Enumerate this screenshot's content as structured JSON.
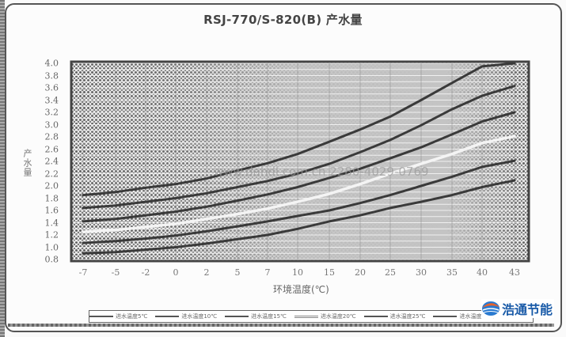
{
  "title": "RSJ-770/S-820(B) 产水量",
  "watermark": "www.dahdl.com.cn 2280-4029-0769",
  "brand": {
    "text": "浩通节能",
    "colors": {
      "orange": "#e8622a",
      "blue": "#2a7ad0"
    }
  },
  "colors": {
    "curve_dark": "#3a3a3a",
    "curve_white": "#f4f4f4",
    "plot_bg": "#c4c4c4",
    "grid": "#ffffff"
  },
  "chart_data": {
    "type": "line",
    "title": "RSJ-770/S-820(B) 产水量",
    "xlabel": "环境温度(℃)",
    "ylabel": "产水量",
    "x": [
      -7,
      -5,
      -2,
      0,
      2,
      5,
      7,
      10,
      15,
      20,
      25,
      30,
      35,
      40,
      43
    ],
    "x_tick_labels": [
      "-7",
      "-5",
      "-2",
      "0",
      "2",
      "5",
      "7",
      "10",
      "15",
      "20",
      "25",
      "30",
      "35",
      "40",
      "43"
    ],
    "y_tick_labels": [
      "4.0",
      "3.8",
      "3.6",
      "3.4",
      "3.2",
      "3.0",
      "2.8",
      "2.6",
      "2.4",
      "2.2",
      "2.0",
      "1.8",
      "1.6",
      "1.4",
      "1.2",
      "1.0",
      "0.8"
    ],
    "ylim": [
      0.8,
      4.0
    ],
    "grid": true,
    "legend_position": "bottom",
    "series": [
      {
        "name": "进水温度5℃",
        "style": "dark",
        "values": [
          1.85,
          1.9,
          1.97,
          2.03,
          2.12,
          2.25,
          2.37,
          2.52,
          2.72,
          2.92,
          3.13,
          3.4,
          3.68,
          3.95,
          4.0
        ]
      },
      {
        "name": "进水温度10℃",
        "style": "dark",
        "values": [
          1.64,
          1.68,
          1.74,
          1.8,
          1.88,
          1.98,
          2.08,
          2.2,
          2.36,
          2.55,
          2.75,
          2.99,
          3.25,
          3.47,
          3.63
        ]
      },
      {
        "name": "进水温度15℃",
        "style": "dark",
        "values": [
          1.42,
          1.46,
          1.52,
          1.58,
          1.66,
          1.76,
          1.86,
          1.98,
          2.13,
          2.28,
          2.45,
          2.63,
          2.84,
          3.05,
          3.2
        ]
      },
      {
        "name": "进水温度20℃",
        "style": "white",
        "values": [
          1.25,
          1.28,
          1.33,
          1.38,
          1.46,
          1.54,
          1.63,
          1.74,
          1.87,
          2.03,
          2.2,
          2.36,
          2.52,
          2.7,
          2.81
        ]
      },
      {
        "name": "进水温度25℃",
        "style": "dark",
        "values": [
          1.07,
          1.1,
          1.14,
          1.19,
          1.26,
          1.34,
          1.42,
          1.51,
          1.6,
          1.72,
          1.85,
          2.0,
          2.15,
          2.31,
          2.41
        ]
      },
      {
        "name": "进水温度30℃",
        "style": "dark",
        "values": [
          0.9,
          0.92,
          0.96,
          1.0,
          1.06,
          1.13,
          1.2,
          1.3,
          1.42,
          1.52,
          1.64,
          1.74,
          1.85,
          1.98,
          2.09
        ]
      }
    ]
  }
}
